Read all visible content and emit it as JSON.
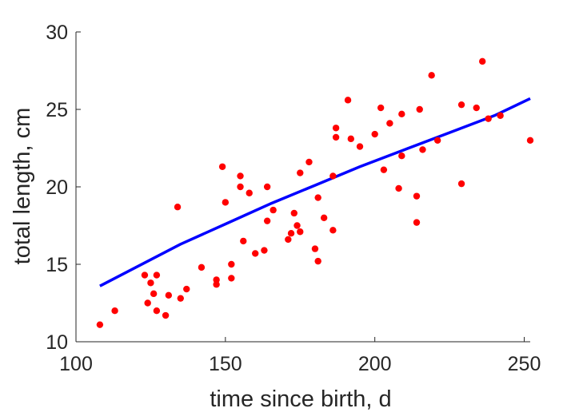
{
  "chart_data": {
    "type": "scatter",
    "xlabel": "time since birth, d",
    "ylabel": "total length, cm",
    "xlim": [
      100,
      252
    ],
    "ylim": [
      10,
      30
    ],
    "xticks": [
      100,
      150,
      200,
      250
    ],
    "yticks": [
      10,
      15,
      20,
      25,
      30
    ],
    "grid": false,
    "axes_box": "left-bottom",
    "series": [
      {
        "kind": "scatter",
        "color": "#ff0000",
        "points": [
          [
            108,
            11.1
          ],
          [
            113,
            12.0
          ],
          [
            123,
            14.3
          ],
          [
            124,
            12.5
          ],
          [
            125,
            13.8
          ],
          [
            126,
            13.1
          ],
          [
            127,
            14.3
          ],
          [
            127,
            12.0
          ],
          [
            130,
            11.7
          ],
          [
            131,
            13.0
          ],
          [
            134,
            18.7
          ],
          [
            135,
            12.8
          ],
          [
            137,
            13.4
          ],
          [
            142,
            14.8
          ],
          [
            147,
            14.0
          ],
          [
            147,
            13.7
          ],
          [
            149,
            21.3
          ],
          [
            150,
            19.0
          ],
          [
            152,
            15.0
          ],
          [
            152,
            14.1
          ],
          [
            155,
            20.0
          ],
          [
            155,
            20.7
          ],
          [
            156,
            16.5
          ],
          [
            158,
            19.6
          ],
          [
            160,
            15.7
          ],
          [
            163,
            15.9
          ],
          [
            164,
            17.8
          ],
          [
            164,
            20.0
          ],
          [
            166,
            18.5
          ],
          [
            171,
            16.6
          ],
          [
            172,
            17.0
          ],
          [
            173,
            18.3
          ],
          [
            174,
            17.5
          ],
          [
            175,
            17.1
          ],
          [
            175,
            20.9
          ],
          [
            178,
            21.6
          ],
          [
            180,
            16.0
          ],
          [
            181,
            15.2
          ],
          [
            181,
            19.3
          ],
          [
            183,
            18.0
          ],
          [
            186,
            17.2
          ],
          [
            186,
            20.7
          ],
          [
            187,
            23.2
          ],
          [
            187,
            23.8
          ],
          [
            191,
            25.6
          ],
          [
            192,
            23.1
          ],
          [
            195,
            22.6
          ],
          [
            200,
            23.4
          ],
          [
            202,
            25.1
          ],
          [
            203,
            21.1
          ],
          [
            205,
            24.1
          ],
          [
            208,
            19.9
          ],
          [
            209,
            22.0
          ],
          [
            209,
            24.7
          ],
          [
            214,
            17.7
          ],
          [
            214,
            19.4
          ],
          [
            215,
            25.0
          ],
          [
            216,
            22.4
          ],
          [
            219,
            27.2
          ],
          [
            221,
            23.0
          ],
          [
            229,
            25.3
          ],
          [
            229,
            20.2
          ],
          [
            234,
            25.1
          ],
          [
            236,
            28.1
          ],
          [
            238,
            24.4
          ],
          [
            242,
            24.6
          ],
          [
            252,
            23.0
          ]
        ]
      },
      {
        "kind": "line",
        "color": "#0000ff",
        "points": [
          [
            108,
            13.6
          ],
          [
            120,
            14.8
          ],
          [
            135,
            16.3
          ],
          [
            150,
            17.6
          ],
          [
            165,
            18.9
          ],
          [
            180,
            20.1
          ],
          [
            195,
            21.3
          ],
          [
            210,
            22.4
          ],
          [
            225,
            23.5
          ],
          [
            240,
            24.6
          ],
          [
            252,
            25.7
          ]
        ]
      }
    ]
  }
}
